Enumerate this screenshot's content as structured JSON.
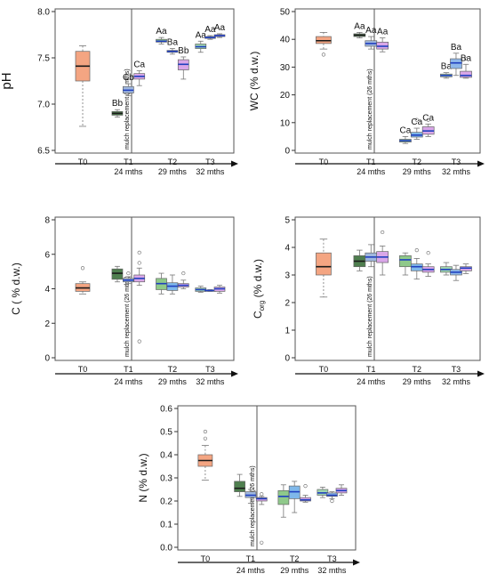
{
  "colors": {
    "T0": "#f4a582",
    "T1_dark": "#4f7f4f",
    "T1_light": "#9fb7de",
    "T1_pink": "#d9a6e8",
    "T2_green": "#8fc98a",
    "T2_blue": "#7fb8ea",
    "T2_pink": "#d9a6e8",
    "T3_green": "#9fd6b0",
    "T3_blue": "#8fb8ea",
    "T3_pink": "#d9a6e8",
    "median_dark": "#1a1a1a",
    "median_blue": "#1f3fbf"
  },
  "groups": [
    "T0",
    "T1",
    "T2",
    "T3"
  ],
  "timeline": [
    "24 mths",
    "29 mths",
    "32 mths"
  ],
  "mulch_label": "mulch replacement (26 mths)",
  "chart_data": [
    {
      "id": "ph",
      "type": "box",
      "ylabel": "pH",
      "ylim": [
        6.5,
        8.0
      ],
      "yticks": [
        "6.5",
        "7.0",
        "7.5",
        "8.0"
      ],
      "yticks_values": [
        6.5,
        7.0,
        7.5,
        8.0
      ],
      "boxes": [
        {
          "group": "T0",
          "color": "T0",
          "min": 6.76,
          "q1": 7.25,
          "median": 7.41,
          "q3": 7.57,
          "max": 7.63,
          "label": ""
        },
        {
          "group": "T1",
          "color": "T1_dark",
          "min": 6.86,
          "q1": 6.88,
          "median": 6.9,
          "q3": 6.92,
          "max": 6.94,
          "label": "Bb"
        },
        {
          "group": "T1",
          "color": "T1_light",
          "min": 7.09,
          "q1": 7.12,
          "median": 7.15,
          "q3": 7.19,
          "max": 7.22,
          "label": "Cb"
        },
        {
          "group": "T1",
          "color": "T1_pink",
          "min": 7.2,
          "q1": 7.27,
          "median": 7.3,
          "q3": 7.33,
          "max": 7.36,
          "label": "Ca"
        },
        {
          "group": "T2",
          "color": "T2_green",
          "min": 7.65,
          "q1": 7.67,
          "median": 7.68,
          "q3": 7.7,
          "max": 7.72,
          "label": "Aa"
        },
        {
          "group": "T2",
          "color": "T2_blue",
          "min": 7.54,
          "q1": 7.56,
          "median": 7.57,
          "q3": 7.58,
          "max": 7.6,
          "label": "Ba"
        },
        {
          "group": "T2",
          "color": "T2_pink",
          "min": 7.27,
          "q1": 7.37,
          "median": 7.43,
          "q3": 7.48,
          "max": 7.51,
          "label": "Bb"
        },
        {
          "group": "T3",
          "color": "T3_green",
          "min": 7.56,
          "q1": 7.6,
          "median": 7.62,
          "q3": 7.65,
          "max": 7.68,
          "label": "Aa"
        },
        {
          "group": "T3",
          "color": "T3_blue",
          "min": 7.7,
          "q1": 7.71,
          "median": 7.72,
          "q3": 7.73,
          "max": 7.74,
          "label": "Aa"
        },
        {
          "group": "T3",
          "color": "T3_pink",
          "min": 7.72,
          "q1": 7.73,
          "median": 7.74,
          "q3": 7.75,
          "max": 7.76,
          "label": "Aa"
        }
      ],
      "outliers": []
    },
    {
      "id": "wc",
      "type": "box",
      "ylabel": "WC (% d.w.)",
      "ylim": [
        0,
        50
      ],
      "yticks": [
        "0",
        "10",
        "20",
        "30",
        "40",
        "50"
      ],
      "yticks_values": [
        0,
        10,
        20,
        30,
        40,
        50
      ],
      "boxes": [
        {
          "group": "T0",
          "color": "T0",
          "min": 36.5,
          "q1": 38.5,
          "median": 39.5,
          "q3": 41,
          "max": 42.5,
          "label": ""
        },
        {
          "group": "T1",
          "color": "T1_dark",
          "min": 40.5,
          "q1": 41,
          "median": 41.5,
          "q3": 42,
          "max": 42.5,
          "label": "Aa"
        },
        {
          "group": "T1",
          "color": "T1_light",
          "min": 36.5,
          "q1": 37.5,
          "median": 38.5,
          "q3": 39.5,
          "max": 41,
          "label": "Aa"
        },
        {
          "group": "T1",
          "color": "T1_pink",
          "min": 35.5,
          "q1": 36.5,
          "median": 37.5,
          "q3": 39,
          "max": 40.5,
          "label": "Aa"
        },
        {
          "group": "T2",
          "color": "T2_green",
          "min": 2.5,
          "q1": 3,
          "median": 3.5,
          "q3": 4,
          "max": 5,
          "label": "Ca"
        },
        {
          "group": "T2",
          "color": "T2_blue",
          "min": 4,
          "q1": 4.8,
          "median": 5.5,
          "q3": 6.5,
          "max": 8,
          "label": "Ca"
        },
        {
          "group": "T2",
          "color": "T2_pink",
          "min": 5,
          "q1": 5.8,
          "median": 7,
          "q3": 8.5,
          "max": 9.5,
          "label": "Ca"
        },
        {
          "group": "T3",
          "color": "T3_green",
          "min": 26,
          "q1": 26.5,
          "median": 27,
          "q3": 27.5,
          "max": 28,
          "label": "Ba"
        },
        {
          "group": "T3",
          "color": "T3_blue",
          "min": 27,
          "q1": 29.5,
          "median": 31.5,
          "q3": 33,
          "max": 35,
          "label": "Ba"
        },
        {
          "group": "T3",
          "color": "T3_pink",
          "min": 26,
          "q1": 26.3,
          "median": 27,
          "q3": 28.5,
          "max": 31,
          "label": "Ba"
        }
      ],
      "outliers": [
        {
          "box": 0,
          "value": 34.5
        },
        {
          "box": 5,
          "value": 11
        },
        {
          "box": 6,
          "value": 11
        },
        {
          "box": 9,
          "value": 33
        }
      ]
    },
    {
      "id": "c",
      "type": "box",
      "ylabel": "C ( % d.w.)",
      "ylim": [
        0,
        8
      ],
      "yticks": [
        "0",
        "2",
        "4",
        "6",
        "8"
      ],
      "yticks_values": [
        0,
        2,
        4,
        6,
        8
      ],
      "boxes": [
        {
          "group": "T0",
          "color": "T0",
          "min": 3.7,
          "q1": 3.85,
          "median": 4.05,
          "q3": 4.3,
          "max": 4.4,
          "label": ""
        },
        {
          "group": "T1",
          "color": "T1_dark",
          "min": 4.4,
          "q1": 4.55,
          "median": 4.9,
          "q3": 5.15,
          "max": 5.3,
          "label": ""
        },
        {
          "group": "T1",
          "color": "T1_light",
          "min": 4.3,
          "q1": 4.4,
          "median": 4.5,
          "q3": 4.6,
          "max": 4.7,
          "label": ""
        },
        {
          "group": "T1",
          "color": "T1_pink",
          "min": 4.2,
          "q1": 4.4,
          "median": 4.6,
          "q3": 4.8,
          "max": 5.2,
          "label": ""
        },
        {
          "group": "T2",
          "color": "T2_green",
          "min": 3.7,
          "q1": 3.95,
          "median": 4.3,
          "q3": 4.6,
          "max": 4.9,
          "label": ""
        },
        {
          "group": "T2",
          "color": "T2_blue",
          "min": 3.7,
          "q1": 3.9,
          "median": 4.15,
          "q3": 4.35,
          "max": 4.8,
          "label": ""
        },
        {
          "group": "T2",
          "color": "T2_pink",
          "min": 4.0,
          "q1": 4.1,
          "median": 4.2,
          "q3": 4.3,
          "max": 4.5,
          "label": ""
        },
        {
          "group": "T3",
          "color": "T3_green",
          "min": 3.8,
          "q1": 3.85,
          "median": 3.95,
          "q3": 4.05,
          "max": 4.15,
          "label": ""
        },
        {
          "group": "T3",
          "color": "T3_blue",
          "min": 3.85,
          "q1": 3.88,
          "median": 3.9,
          "q3": 3.93,
          "max": 3.95,
          "label": ""
        },
        {
          "group": "T3",
          "color": "T3_pink",
          "min": 3.75,
          "q1": 3.85,
          "median": 4.0,
          "q3": 4.1,
          "max": 4.2,
          "label": ""
        }
      ],
      "outliers": [
        {
          "box": 0,
          "value": 5.2
        },
        {
          "box": 2,
          "value": 4.9
        },
        {
          "box": 3,
          "value": 6.1
        },
        {
          "box": 3,
          "value": 5.5
        },
        {
          "box": 3,
          "value": 0.95
        },
        {
          "box": 6,
          "value": 4.9
        }
      ]
    },
    {
      "id": "corg",
      "type": "box",
      "ylabel_main": "C",
      "ylabel_sub": "org",
      "ylabel_rest": " (% d.w.)",
      "ylim": [
        0,
        5
      ],
      "yticks": [
        "0",
        "1",
        "2",
        "3",
        "4",
        "5"
      ],
      "yticks_values": [
        0,
        1,
        2,
        3,
        4,
        5
      ],
      "boxes": [
        {
          "group": "T0",
          "color": "T0",
          "min": 2.2,
          "q1": 3.0,
          "median": 3.3,
          "q3": 3.8,
          "max": 4.3,
          "label": ""
        },
        {
          "group": "T1",
          "color": "T1_dark",
          "min": 3.15,
          "q1": 3.3,
          "median": 3.5,
          "q3": 3.7,
          "max": 3.9,
          "label": ""
        },
        {
          "group": "T1",
          "color": "T1_light",
          "min": 3.3,
          "q1": 3.5,
          "median": 3.65,
          "q3": 3.8,
          "max": 4.1,
          "label": ""
        },
        {
          "group": "T1",
          "color": "T1_pink",
          "min": 3.0,
          "q1": 3.45,
          "median": 3.65,
          "q3": 3.85,
          "max": 4.05,
          "label": ""
        },
        {
          "group": "T2",
          "color": "T2_green",
          "min": 3.0,
          "q1": 3.3,
          "median": 3.55,
          "q3": 3.7,
          "max": 3.8,
          "label": ""
        },
        {
          "group": "T2",
          "color": "T2_blue",
          "min": 2.85,
          "q1": 3.15,
          "median": 3.3,
          "q3": 3.4,
          "max": 3.6,
          "label": ""
        },
        {
          "group": "T2",
          "color": "T2_pink",
          "min": 2.95,
          "q1": 3.1,
          "median": 3.2,
          "q3": 3.3,
          "max": 3.4,
          "label": ""
        },
        {
          "group": "T3",
          "color": "T3_green",
          "min": 3.0,
          "q1": 3.1,
          "median": 3.2,
          "q3": 3.3,
          "max": 3.45,
          "label": ""
        },
        {
          "group": "T3",
          "color": "T3_blue",
          "min": 2.8,
          "q1": 3.0,
          "median": 3.1,
          "q3": 3.2,
          "max": 3.35,
          "label": ""
        },
        {
          "group": "T3",
          "color": "T3_pink",
          "min": 3.05,
          "q1": 3.15,
          "median": 3.25,
          "q3": 3.3,
          "max": 3.4,
          "label": ""
        }
      ],
      "outliers": [
        {
          "box": 3,
          "value": 4.55
        },
        {
          "box": 5,
          "value": 3.9
        },
        {
          "box": 6,
          "value": 3.8
        }
      ]
    },
    {
      "id": "n",
      "type": "box",
      "ylabel": "N (% d.w.)",
      "ylim": [
        0,
        0.6
      ],
      "yticks": [
        "0.0",
        "0.1",
        "0.2",
        "0.3",
        "0.4",
        "0.5",
        "0.6"
      ],
      "yticks_values": [
        0,
        0.1,
        0.2,
        0.3,
        0.4,
        0.5,
        0.6
      ],
      "boxes": [
        {
          "group": "T0",
          "color": "T0",
          "min": 0.29,
          "q1": 0.35,
          "median": 0.375,
          "q3": 0.4,
          "max": 0.44,
          "label": ""
        },
        {
          "group": "T1",
          "color": "T1_dark",
          "min": 0.22,
          "q1": 0.24,
          "median": 0.255,
          "q3": 0.285,
          "max": 0.315,
          "label": ""
        },
        {
          "group": "T1",
          "color": "T1_light",
          "min": 0.19,
          "q1": 0.215,
          "median": 0.225,
          "q3": 0.24,
          "max": 0.25,
          "label": ""
        },
        {
          "group": "T1",
          "color": "T1_pink",
          "min": 0.185,
          "q1": 0.2,
          "median": 0.21,
          "q3": 0.215,
          "max": 0.22,
          "label": ""
        },
        {
          "group": "T2",
          "color": "T2_green",
          "min": 0.13,
          "q1": 0.185,
          "median": 0.22,
          "q3": 0.245,
          "max": 0.27,
          "label": ""
        },
        {
          "group": "T2",
          "color": "T2_blue",
          "min": 0.15,
          "q1": 0.21,
          "median": 0.24,
          "q3": 0.265,
          "max": 0.285,
          "label": ""
        },
        {
          "group": "T2",
          "color": "T2_pink",
          "min": 0.195,
          "q1": 0.2,
          "median": 0.205,
          "q3": 0.215,
          "max": 0.225,
          "label": ""
        },
        {
          "group": "T3",
          "color": "T3_green",
          "min": 0.215,
          "q1": 0.225,
          "median": 0.235,
          "q3": 0.25,
          "max": 0.26,
          "label": ""
        },
        {
          "group": "T3",
          "color": "T3_blue",
          "min": 0.21,
          "q1": 0.22,
          "median": 0.225,
          "q3": 0.235,
          "max": 0.24,
          "label": ""
        },
        {
          "group": "T3",
          "color": "T3_pink",
          "min": 0.225,
          "q1": 0.235,
          "median": 0.245,
          "q3": 0.255,
          "max": 0.27,
          "label": ""
        }
      ],
      "outliers": [
        {
          "box": 0,
          "value": 0.5
        },
        {
          "box": 0,
          "value": 0.47
        },
        {
          "box": 3,
          "value": 0.23
        },
        {
          "box": 3,
          "value": 0.02
        },
        {
          "box": 8,
          "value": 0.2
        },
        {
          "box": 6,
          "value": 0.265
        }
      ]
    }
  ]
}
